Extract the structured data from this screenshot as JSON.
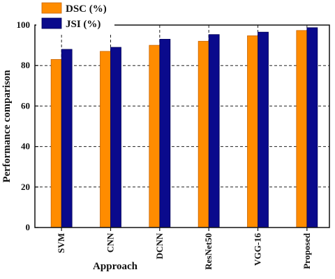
{
  "chart_data": {
    "type": "bar",
    "title": "",
    "xlabel": "Approach",
    "ylabel": "Performance comparison",
    "categories": [
      "SVM",
      "CNN",
      "DCNN",
      "ResNet50",
      "VGG-16",
      "Proposed"
    ],
    "series": [
      {
        "name": "DSC (%)",
        "values": [
          83,
          87,
          90,
          92,
          94.7,
          97.3
        ],
        "color": "#ff8c00"
      },
      {
        "name": "JSI (%)",
        "values": [
          88,
          89,
          93,
          95.3,
          96.5,
          98.7
        ],
        "color": "#0a0a8c"
      }
    ],
    "ylim": [
      0,
      100
    ],
    "yticks": [
      0,
      20,
      40,
      60,
      80,
      100
    ],
    "grid": "dashed horizontal and vertical",
    "legend_position": "top-left"
  }
}
